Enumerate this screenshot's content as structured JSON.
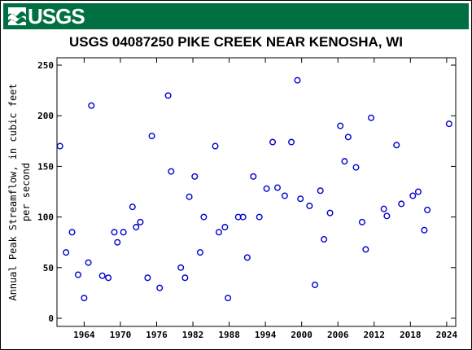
{
  "header": {
    "logo_text": "USGS",
    "logo_icon": "usgs-wave-icon",
    "brand_color": "#006F41"
  },
  "chart_data": {
    "type": "scatter",
    "title": "USGS 04087250 PIKE CREEK NEAR KENOSHA, WI",
    "xlabel": "",
    "ylabel_lines": [
      "Annual Peak Streamflow, in cubic feet",
      "per second"
    ],
    "xlim": [
      1959.5,
      2025.5
    ],
    "ylim": [
      0,
      250
    ],
    "x_ticks": [
      1964,
      1970,
      1976,
      1982,
      1988,
      1994,
      2000,
      2006,
      2012,
      2018,
      2024
    ],
    "y_ticks": [
      0,
      50,
      100,
      150,
      200,
      250
    ],
    "grid": false,
    "marker": {
      "shape": "open-circle",
      "color": "#0000CC"
    },
    "points": [
      [
        1960,
        170
      ],
      [
        1961,
        65
      ],
      [
        1962,
        85
      ],
      [
        1963,
        43
      ],
      [
        1964,
        20
      ],
      [
        1964.7,
        55
      ],
      [
        1965.2,
        210
      ],
      [
        1967,
        42
      ],
      [
        1968,
        40
      ],
      [
        1969,
        85
      ],
      [
        1969.5,
        75
      ],
      [
        1970.5,
        85
      ],
      [
        1972,
        110
      ],
      [
        1972.6,
        90
      ],
      [
        1973.3,
        95
      ],
      [
        1974.5,
        40
      ],
      [
        1975.2,
        180
      ],
      [
        1976.5,
        30
      ],
      [
        1977.9,
        220
      ],
      [
        1978.4,
        145
      ],
      [
        1980,
        50
      ],
      [
        1980.7,
        40
      ],
      [
        1981.4,
        120
      ],
      [
        1982.3,
        140
      ],
      [
        1983.2,
        65
      ],
      [
        1983.8,
        100
      ],
      [
        1985.7,
        170
      ],
      [
        1986.3,
        85
      ],
      [
        1987.3,
        90
      ],
      [
        1987.8,
        20
      ],
      [
        1989.5,
        100
      ],
      [
        1990.3,
        100
      ],
      [
        1991,
        60
      ],
      [
        1992,
        140
      ],
      [
        1993,
        100
      ],
      [
        1994.2,
        128
      ],
      [
        1995.2,
        174
      ],
      [
        1996,
        129
      ],
      [
        1997.2,
        121
      ],
      [
        1998.3,
        174
      ],
      [
        1999.3,
        235
      ],
      [
        1999.8,
        118
      ],
      [
        2001.3,
        111
      ],
      [
        2002.2,
        33
      ],
      [
        2003.1,
        126
      ],
      [
        2003.7,
        78
      ],
      [
        2004.7,
        104
      ],
      [
        2006.4,
        190
      ],
      [
        2007.1,
        155
      ],
      [
        2007.7,
        179
      ],
      [
        2009,
        149
      ],
      [
        2010,
        95
      ],
      [
        2010.6,
        68
      ],
      [
        2011.5,
        198
      ],
      [
        2013.6,
        108
      ],
      [
        2014.1,
        101
      ],
      [
        2015.7,
        171
      ],
      [
        2016.5,
        113
      ],
      [
        2018.4,
        121
      ],
      [
        2019.3,
        125
      ],
      [
        2020.3,
        87
      ],
      [
        2020.8,
        107
      ],
      [
        2024.4,
        192
      ]
    ]
  }
}
